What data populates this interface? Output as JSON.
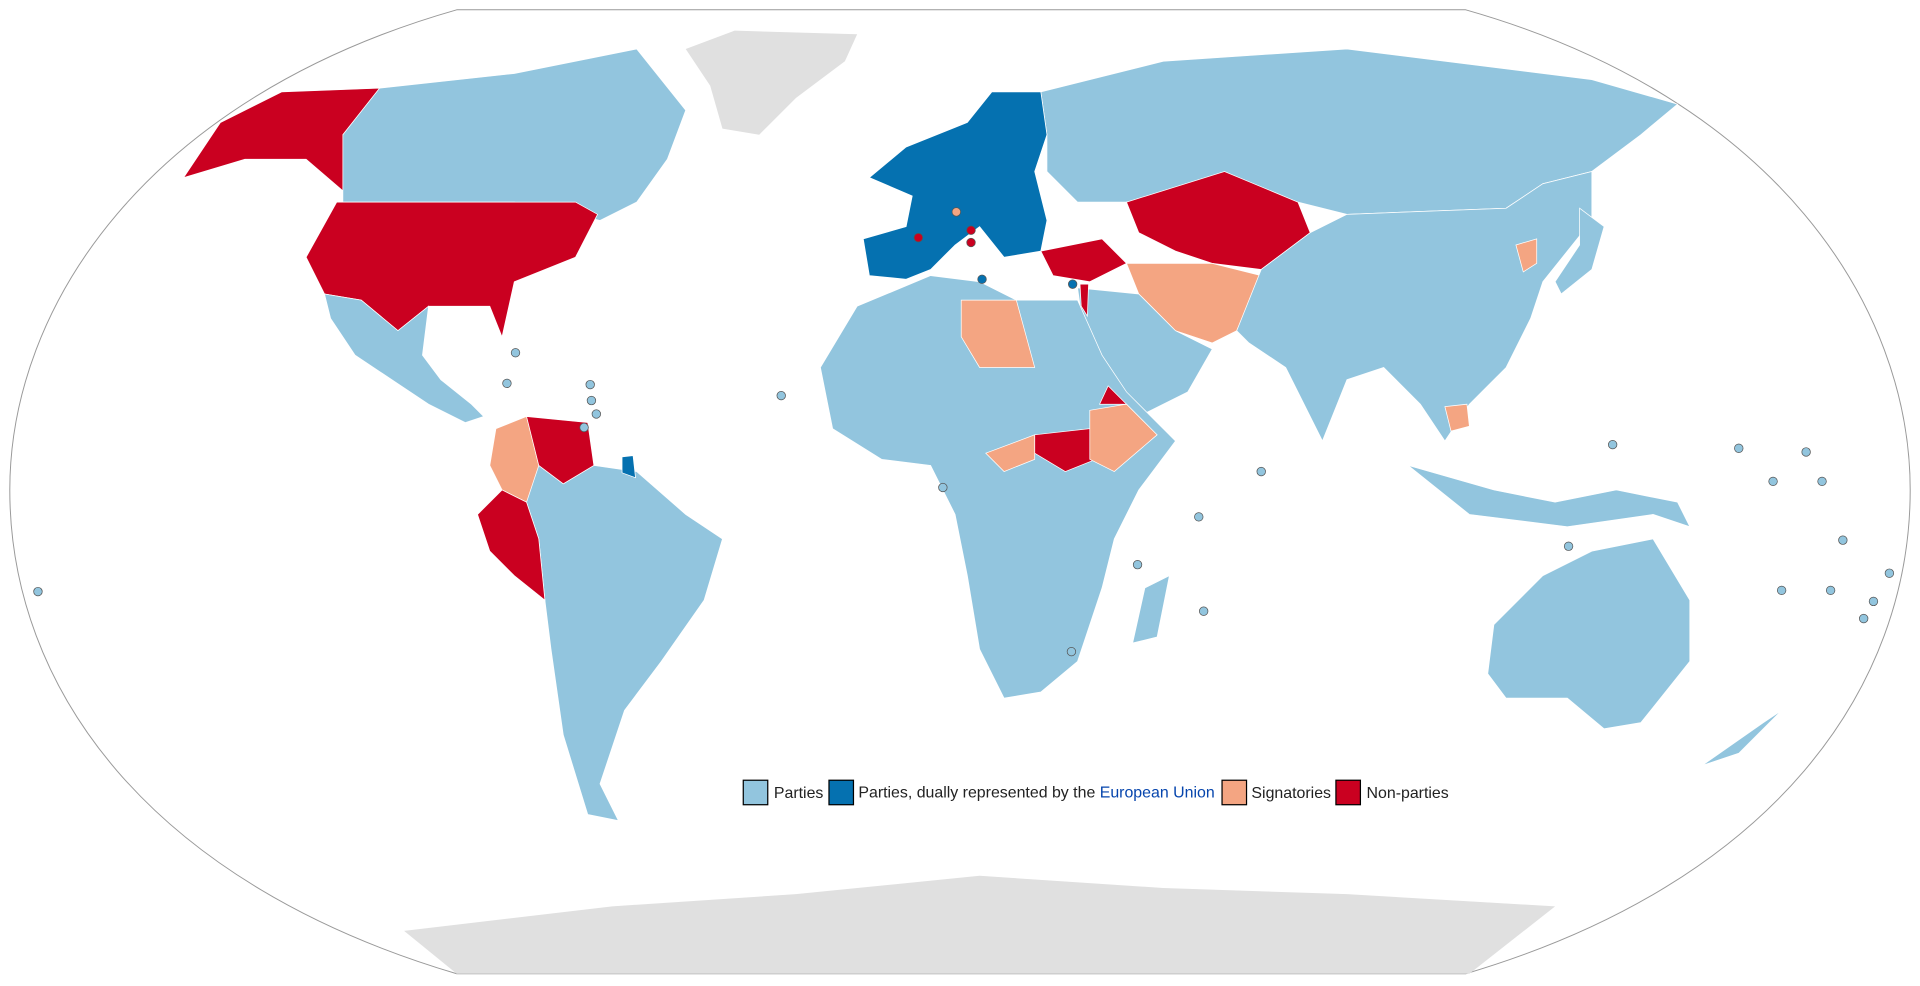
{
  "legend": {
    "items": [
      {
        "label": "Parties",
        "color": "#92c5de"
      },
      {
        "label": "Parties, dually represented by the ",
        "link": "European Union",
        "color": "#0571b0"
      },
      {
        "label": "Signatories",
        "color": "#f4a582"
      },
      {
        "label": "Non-parties",
        "color": "#ca0020"
      }
    ]
  }
}
